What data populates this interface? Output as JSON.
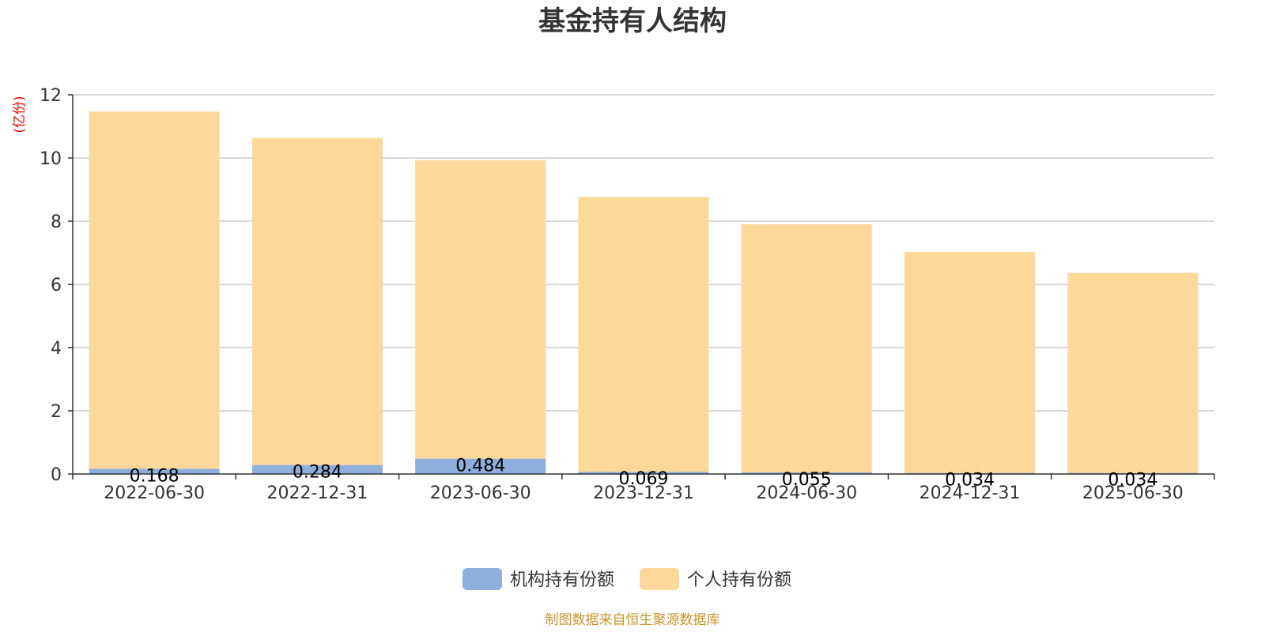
{
  "chart_data": {
    "type": "bar",
    "stacked": true,
    "title": "基金持有人结构",
    "ylabel": "(亿份)",
    "xlabel": "",
    "ylim": [
      0,
      12
    ],
    "yticks": [
      0,
      2,
      4,
      6,
      8,
      10,
      12
    ],
    "grid": true,
    "legend_position": "bottom",
    "categories": [
      "2022-06-30",
      "2022-12-31",
      "2023-06-30",
      "2023-12-31",
      "2024-06-30",
      "2024-12-31",
      "2025-06-30"
    ],
    "series": [
      {
        "name": "机构持有份额",
        "color": "#8eaedb",
        "values": [
          0.168,
          0.284,
          0.484,
          0.069,
          0.055,
          0.034,
          0.034
        ],
        "labels": [
          "0.168",
          "0.284",
          "0.484",
          "0.069",
          "0.055",
          "0.034",
          "0.034"
        ]
      },
      {
        "name": "个人持有份额",
        "color": "#fed899",
        "values": [
          11.3,
          10.35,
          9.45,
          8.7,
          7.85,
          6.99,
          6.33
        ]
      }
    ]
  },
  "source_note": "制图数据来自恒生聚源数据库"
}
